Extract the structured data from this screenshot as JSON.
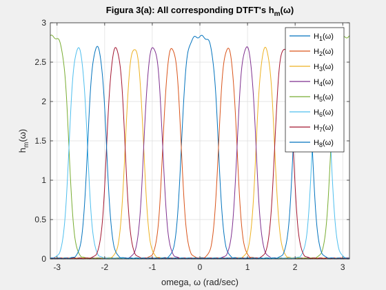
{
  "chart_data": {
    "type": "line",
    "title": "Figura 3(a): All corresponding DTFT's h",
    "title_sub": "m",
    "title_suffix": "(ω)",
    "xlabel": "omega, ω (rad/sec)",
    "ylabel": "h",
    "ylabel_sub": "m",
    "ylabel_suffix": "(ω)",
    "xlim": [
      -3.14159,
      3.14159
    ],
    "ylim": [
      0,
      3
    ],
    "xticks": [
      -3,
      -2,
      -1,
      0,
      1,
      2,
      3
    ],
    "yticks": [
      0,
      0.5,
      1,
      1.5,
      2,
      2.5,
      3
    ],
    "ytick_labels": [
      "0",
      "0.5",
      "1",
      "1.5",
      "2",
      "2.5",
      "3"
    ],
    "grid": true,
    "legend_position": "top-right",
    "passband_level": 2.83,
    "series": [
      {
        "name": "H",
        "sub": "1",
        "suffix": "(ω)",
        "color": "#0072BD",
        "bands": [
          [
            -0.39,
            0.39
          ]
        ]
      },
      {
        "name": "H",
        "sub": "2",
        "suffix": "(ω)",
        "color": "#D95319",
        "bands": [
          [
            0.39,
            0.78
          ],
          [
            -0.78,
            -0.39
          ]
        ]
      },
      {
        "name": "H",
        "sub": "3",
        "suffix": "(ω)",
        "color": "#EDB120",
        "bands": [
          [
            1.18,
            1.57
          ],
          [
            -1.57,
            -1.18
          ]
        ]
      },
      {
        "name": "H",
        "sub": "4",
        "suffix": "(ω)",
        "color": "#7E2F8E",
        "bands": [
          [
            0.78,
            1.18
          ],
          [
            -1.18,
            -0.78
          ]
        ]
      },
      {
        "name": "H",
        "sub": "5",
        "suffix": "(ω)",
        "color": "#77AC30",
        "bands": [
          [
            2.75,
            3.14159
          ],
          [
            -3.14159,
            -2.75
          ]
        ]
      },
      {
        "name": "H",
        "sub": "6",
        "suffix": "(ω)",
        "color": "#4DBEEE",
        "bands": [
          [
            2.36,
            2.75
          ],
          [
            -2.75,
            -2.36
          ]
        ]
      },
      {
        "name": "H",
        "sub": "7",
        "suffix": "(ω)",
        "color": "#A2142F",
        "bands": [
          [
            1.57,
            1.96
          ],
          [
            -1.96,
            -1.57
          ]
        ]
      },
      {
        "name": "H",
        "sub": "8",
        "suffix": "(ω)",
        "color": "#0072BD",
        "bands": [
          [
            1.96,
            2.36
          ],
          [
            -2.36,
            -1.96
          ]
        ]
      }
    ]
  }
}
